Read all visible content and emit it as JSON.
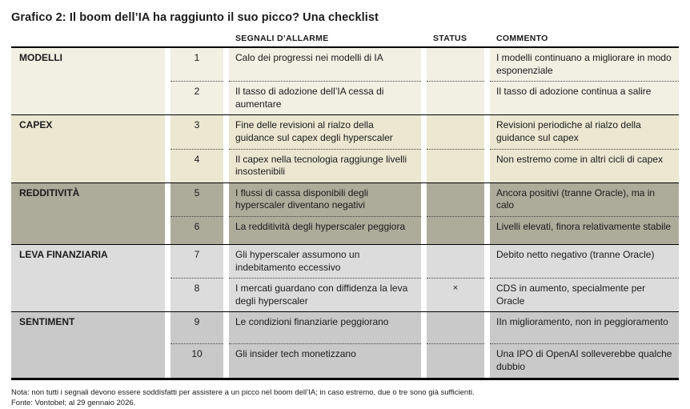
{
  "title": "Grafico 2: Il boom dell’IA ha raggiunto il suo picco? Una checklist",
  "table": {
    "headers": {
      "signals": "SEGNALI D’ALLARME",
      "status": "STATUS",
      "comment": "COMMENTO"
    },
    "groups": [
      {
        "category": "MODELLI",
        "color": "#f2efe3",
        "rows": [
          {
            "num": "1",
            "signal": "Calo dei progressi nei modelli di IA",
            "status": "",
            "comment": "I modelli continuano a migliorare in modo esponenziale"
          },
          {
            "num": "2",
            "signal": "Il tasso di adozione dell’IA cessa di aumentare",
            "status": "",
            "comment": "Il tasso di adozione continua a salire"
          }
        ]
      },
      {
        "category": "CAPEX",
        "color": "#ebe7d1",
        "rows": [
          {
            "num": "3",
            "signal": "Fine delle revisioni al rialzo della guidance sul capex degli hyperscaler",
            "status": "",
            "comment": "Revisioni periodiche al rialzo della guidance sul capex"
          },
          {
            "num": "4",
            "signal": "Il capex nella tecnologia raggiunge livelli insostenibili",
            "status": "",
            "comment": "Non estremo come in altri cicli di capex"
          }
        ]
      },
      {
        "category": "REDDITIVITÀ",
        "color": "#adab9a",
        "rows": [
          {
            "num": "5",
            "signal": "I flussi di cassa disponibili degli hyperscaler diventano negativi",
            "status": "",
            "comment": "Ancora positivi (tranne Oracle), ma in calo"
          },
          {
            "num": "6",
            "signal": "La redditività degli hyperscaler peggiora",
            "status": "",
            "comment": "Livelli elevati, finora relativamente stabile"
          }
        ]
      },
      {
        "category": "LEVA FINANZIARIA",
        "color": "#dcdcdc",
        "rows": [
          {
            "num": "7",
            "signal": "Gli hyperscaler assumono un indebitamento eccessivo",
            "status": "",
            "comment": "Debito netto negativo (tranne Oracle)"
          },
          {
            "num": "8",
            "signal": "I mercati guardano con diffidenza la leva degli hyperscaler",
            "status": "×",
            "comment": "CDS in aumento, specialmente per Oracle"
          }
        ]
      },
      {
        "category": "SENTIMENT",
        "color": "#c9c9c9",
        "rows": [
          {
            "num": "9",
            "signal": "Le condizioni finanziarie peggiorano",
            "status": "",
            "comment": "IIn miglioramento, non in peggioramento"
          },
          {
            "num": "10",
            "signal": "Gli insider tech monetizzano",
            "status": "",
            "comment": "Una IPO di OpenAI solleverebbe qualche dubbio"
          }
        ]
      }
    ]
  },
  "footer": {
    "note": "Nota: non tutti i segnali devono essere soddisfatti per assistere a un picco nel boom dell’IA; in caso estremo, due o tre sono già sufficienti.",
    "source": "Fonte: Vontobel; al 29 gennaio 2026."
  }
}
